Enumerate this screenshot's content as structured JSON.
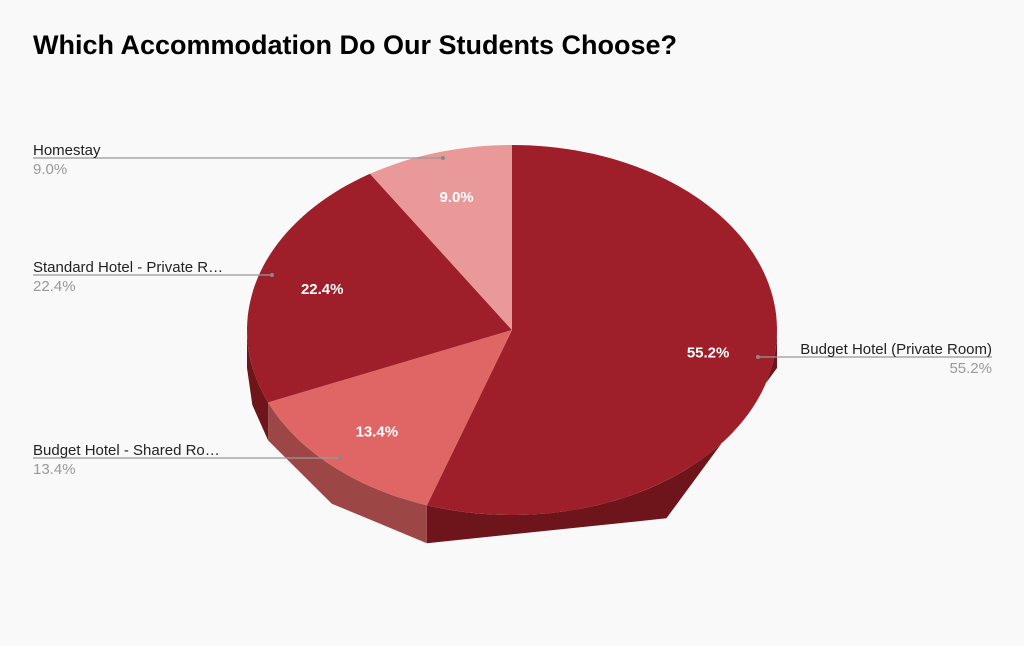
{
  "chart_data": {
    "type": "pie",
    "title": "Which Accommodation Do Our Students Choose?",
    "three_d": true,
    "slices": [
      {
        "label": "Budget Hotel (Private Room)",
        "display_label": "Budget Hotel (Private Room)",
        "value": 55.2,
        "pct_text": "55.2%",
        "color": "#9e1f2a",
        "side_color": "#6e151c",
        "label_side": "right"
      },
      {
        "label": "Budget Hotel - Shared Room",
        "display_label": "Budget Hotel - Shared Ro…",
        "value": 13.4,
        "pct_text": "13.4%",
        "color": "#e06666",
        "side_color": "#9c4646",
        "label_side": "left"
      },
      {
        "label": "Standard Hotel - Private Room",
        "display_label": "Standard Hotel - Private R…",
        "value": 22.4,
        "pct_text": "22.4%",
        "color": "#9e1f2a",
        "side_color": "#6e151c",
        "label_side": "left"
      },
      {
        "label": "Homestay",
        "display_label": "Homestay",
        "value": 9.0,
        "pct_text": "9.0%",
        "color": "#ea9999",
        "side_color": "#b07070",
        "label_side": "left"
      }
    ],
    "legend": "labels with leader lines"
  }
}
